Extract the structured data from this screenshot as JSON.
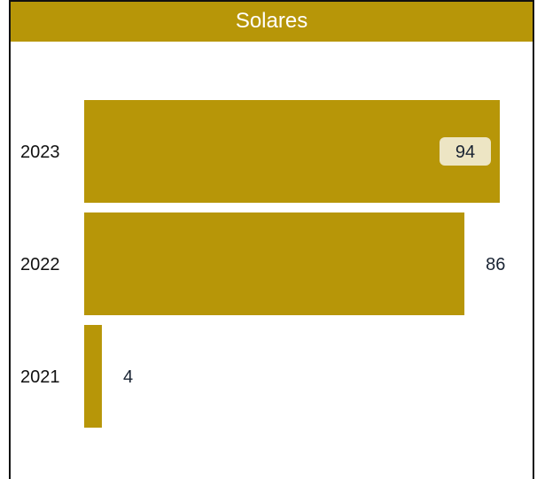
{
  "chart_data": {
    "type": "bar",
    "orientation": "horizontal",
    "title": "Solares",
    "categories": [
      "2023",
      "2022",
      "2021"
    ],
    "values": [
      94,
      86,
      4
    ],
    "xlim": [
      0,
      94
    ],
    "grid": false,
    "highlighted_value_label": "94"
  },
  "colors": {
    "bar": "#b79608",
    "header": "#b79608",
    "title_text": "#ffffff",
    "value_badge_bg": "#ede5c4",
    "value_text": "#1a2433",
    "category_text": "#111111"
  }
}
